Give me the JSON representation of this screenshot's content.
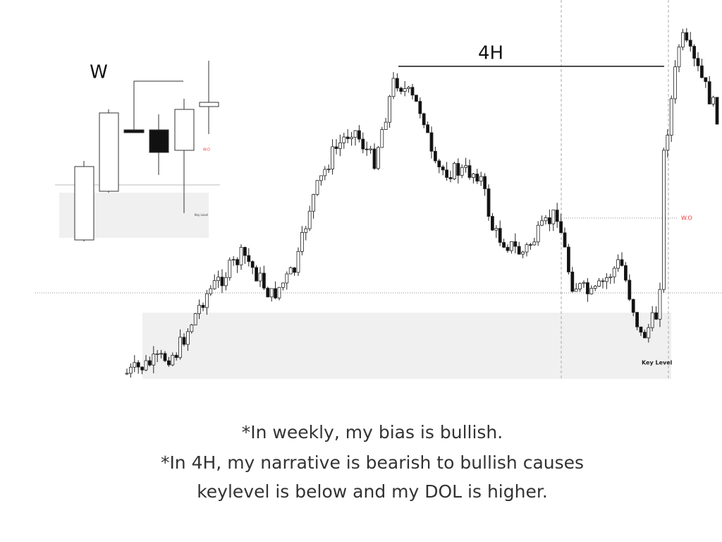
{
  "weekly": {
    "label": "W",
    "open_label": "W.O",
    "key_label": "Key Level"
  },
  "h4": {
    "label": "4H",
    "open_label": "W.O",
    "key_label": "Key Level"
  },
  "caption": {
    "lines": [
      "*In weekly, my bias is bullish.",
      "*In 4H, my narrative is bearish to bullish causes",
      "keylevel is below and my DOL is higher."
    ]
  }
}
